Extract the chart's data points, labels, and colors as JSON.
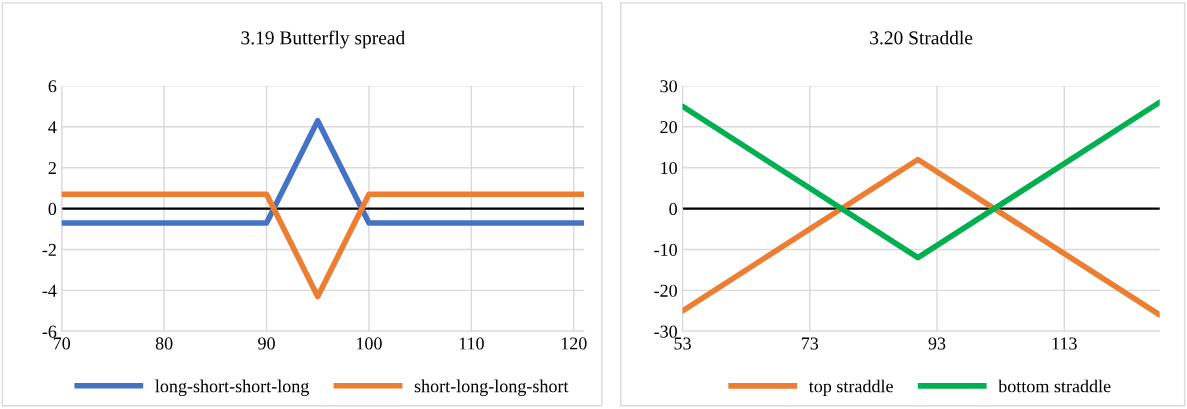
{
  "chart_data": [
    {
      "type": "line",
      "title": "3.19 Butterfly spread",
      "x": [
        70,
        90,
        95,
        100,
        121
      ],
      "xlim": [
        70,
        121
      ],
      "xticks": [
        70,
        80,
        90,
        100,
        110,
        120
      ],
      "ylim": [
        -6,
        6
      ],
      "yticks": [
        -6,
        -4,
        -2,
        0,
        2,
        4,
        6
      ],
      "grid": true,
      "legend": "bottom",
      "marker": "none",
      "line_style": "solid",
      "ref_lines": [
        {
          "axis": "y",
          "value": 0,
          "color": "#000000"
        }
      ],
      "series": [
        {
          "name": "long-short-short-long",
          "color": "#4472c4",
          "values": [
            -0.7,
            -0.7,
            4.3,
            -0.7,
            -0.7
          ]
        },
        {
          "name": "short-long-long-short",
          "color": "#ed7d31",
          "values": [
            0.7,
            0.7,
            -4.3,
            0.7,
            0.7
          ]
        }
      ]
    },
    {
      "type": "line",
      "title": "3.20 Straddle",
      "x": [
        53,
        90,
        128
      ],
      "xlim": [
        53,
        128
      ],
      "xticks": [
        53,
        73,
        93,
        113
      ],
      "ylim": [
        -30,
        30
      ],
      "yticks": [
        -30,
        -20,
        -10,
        0,
        10,
        20,
        30
      ],
      "grid": true,
      "legend": "bottom",
      "marker": "none",
      "line_style": "solid",
      "ref_lines": [
        {
          "axis": "y",
          "value": 0,
          "color": "#000000"
        }
      ],
      "series": [
        {
          "name": "top straddle",
          "color": "#ed7d31",
          "values": [
            -25,
            12,
            -26
          ]
        },
        {
          "name": "bottom straddle",
          "color": "#00b050",
          "values": [
            25,
            -12,
            26
          ]
        }
      ]
    }
  ]
}
